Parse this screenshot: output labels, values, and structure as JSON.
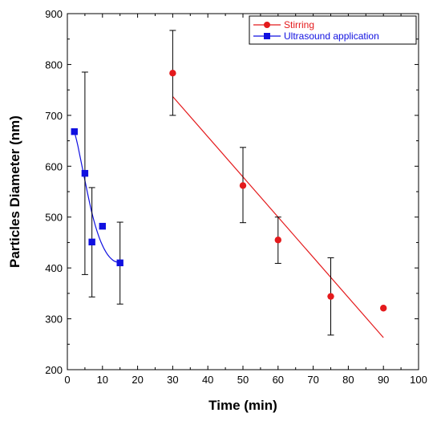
{
  "chart_data": {
    "type": "scatter",
    "title": "",
    "xlabel": "Time (min)",
    "ylabel": "Particles Diameter (nm)",
    "xlim": [
      0,
      100
    ],
    "ylim": [
      200,
      900
    ],
    "xticks": [
      0,
      10,
      20,
      30,
      40,
      50,
      60,
      70,
      80,
      90,
      100
    ],
    "yticks": [
      200,
      300,
      400,
      500,
      600,
      700,
      800,
      900
    ],
    "grid": false,
    "legend_position": "top-right",
    "series": [
      {
        "name": "Stirring",
        "color": "#e41a1c",
        "marker": "circle",
        "x": [
          30,
          50,
          60,
          75,
          90
        ],
        "y": [
          783,
          562,
          455,
          344,
          321
        ],
        "error_low": [
          700,
          489,
          409,
          268,
          null
        ],
        "error_high": [
          867,
          637,
          500,
          420,
          null
        ],
        "fit": {
          "type": "linear",
          "x": [
            30,
            90
          ],
          "y": [
            737,
            263
          ],
          "color": "#e41a1c"
        }
      },
      {
        "name": "Ultrasound application",
        "color": "#1010e0",
        "marker": "square",
        "x": [
          2,
          5,
          7,
          10,
          15
        ],
        "y": [
          668,
          586,
          451,
          482,
          410
        ],
        "error_low": [
          null,
          387,
          343,
          null,
          329
        ],
        "error_high": [
          null,
          785,
          558,
          null,
          490
        ],
        "fit": {
          "type": "curve",
          "x": [
            2,
            3,
            5,
            7,
            9,
            11,
            13,
            15
          ],
          "y": [
            668,
            640,
            572,
            508,
            461,
            431,
            415,
            410
          ],
          "color": "#1010e0"
        }
      }
    ]
  }
}
